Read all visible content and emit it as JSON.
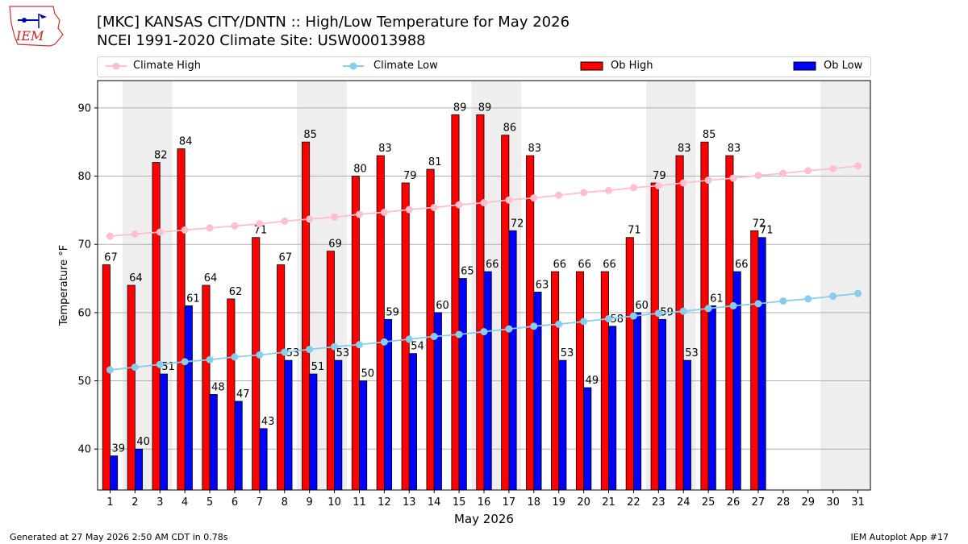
{
  "header": {
    "logo_text": "IEM",
    "title_line1": "[MKC] KANSAS CITY/DNTN :: High/Low Temperature for May 2026",
    "title_line2": "NCEI 1991-2020 Climate Site: USW00013988"
  },
  "legend": {
    "climate_high": "Climate High",
    "climate_low": "Climate Low",
    "ob_high": "Ob High",
    "ob_low": "Ob Low"
  },
  "colors": {
    "climate_high": "#ffc0cb",
    "climate_low": "#87ceeb",
    "ob_high": "#ff0000",
    "ob_low": "#0000ff",
    "weekend_shade": "#eeeeee",
    "grid": "#b0b0b0"
  },
  "footer": {
    "left": "Generated at 27 May 2026 2:50 AM CDT in 0.78s",
    "right": "IEM Autoplot App #17"
  },
  "chart_data": {
    "type": "bar",
    "xlabel": "May 2026",
    "ylabel": "Temperature °F",
    "ylim": [
      34,
      94
    ],
    "yticks": [
      40,
      50,
      60,
      70,
      80,
      90
    ],
    "grid": "horizontal",
    "legend_position": "top",
    "categories": [
      1,
      2,
      3,
      4,
      5,
      6,
      7,
      8,
      9,
      10,
      11,
      12,
      13,
      14,
      15,
      16,
      17,
      18,
      19,
      20,
      21,
      22,
      23,
      24,
      25,
      26,
      27,
      28,
      29,
      30,
      31
    ],
    "weekend_shaded_days": [
      2,
      3,
      9,
      10,
      16,
      17,
      23,
      24,
      30,
      31
    ],
    "series": [
      {
        "name": "Ob High",
        "kind": "bar",
        "values": [
          67,
          64,
          82,
          84,
          64,
          62,
          71,
          67,
          85,
          69,
          80,
          83,
          79,
          81,
          89,
          89,
          86,
          83,
          66,
          66,
          66,
          71,
          79,
          83,
          85,
          83,
          72,
          null,
          null,
          null,
          null
        ]
      },
      {
        "name": "Ob Low",
        "kind": "bar",
        "values": [
          39,
          40,
          51,
          61,
          48,
          47,
          43,
          53,
          51,
          53,
          50,
          59,
          54,
          60,
          65,
          66,
          72,
          63,
          53,
          49,
          58,
          60,
          59,
          53,
          61,
          66,
          71,
          null,
          null,
          null,
          null
        ]
      },
      {
        "name": "Climate High",
        "kind": "line",
        "values": [
          71.2,
          71.5,
          71.8,
          72.1,
          72.4,
          72.7,
          73.0,
          73.4,
          73.7,
          74.0,
          74.4,
          74.7,
          75.1,
          75.4,
          75.8,
          76.1,
          76.5,
          76.8,
          77.2,
          77.6,
          77.9,
          78.3,
          78.6,
          79.0,
          79.4,
          79.7,
          80.1,
          80.4,
          80.8,
          81.1,
          81.5
        ]
      },
      {
        "name": "Climate Low",
        "kind": "line",
        "values": [
          51.6,
          52.0,
          52.4,
          52.8,
          53.1,
          53.5,
          53.8,
          54.2,
          54.6,
          55.0,
          55.3,
          55.7,
          56.1,
          56.5,
          56.8,
          57.2,
          57.6,
          58.0,
          58.3,
          58.7,
          59.1,
          59.5,
          59.9,
          60.2,
          60.6,
          61.0,
          61.3,
          61.7,
          62.0,
          62.4,
          62.8
        ]
      }
    ]
  }
}
